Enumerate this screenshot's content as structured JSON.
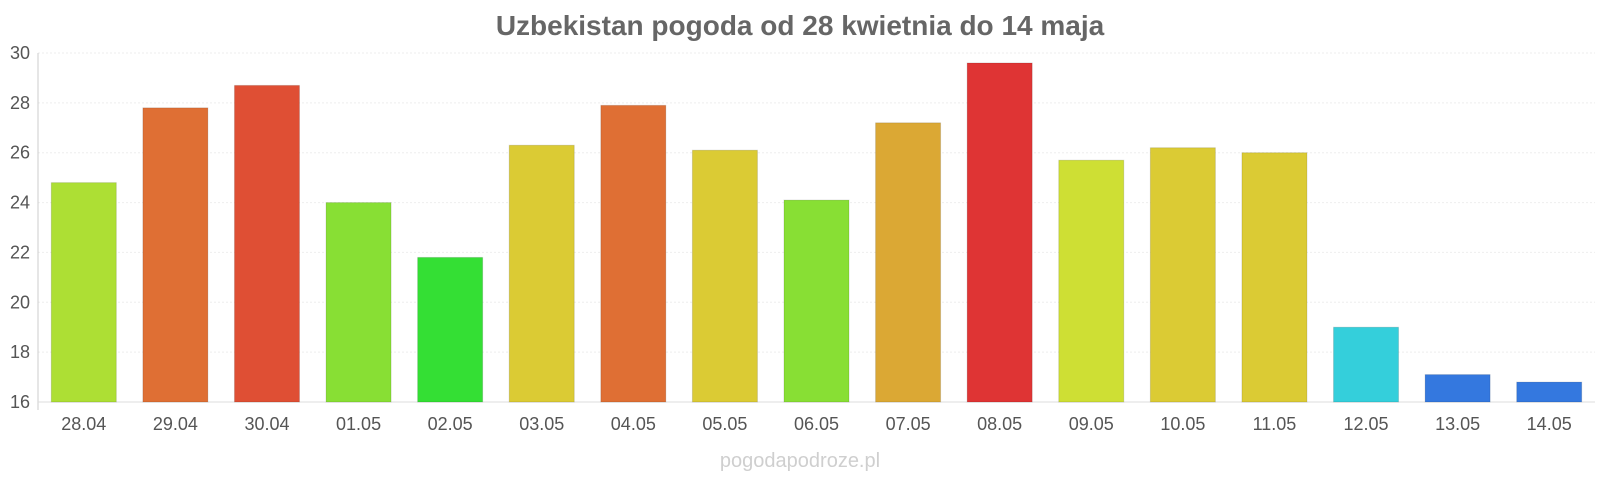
{
  "chart_data": {
    "type": "bar",
    "title": "Uzbekistan pogoda od 28 kwietnia do 14 maja",
    "xlabel": "",
    "ylabel": "",
    "ylim": [
      16,
      30
    ],
    "yticks": [
      16,
      18,
      20,
      22,
      24,
      26,
      28,
      30
    ],
    "grid": true,
    "legend": "none",
    "categories": [
      "28.04",
      "29.04",
      "30.04",
      "01.05",
      "02.05",
      "03.05",
      "04.05",
      "05.05",
      "06.05",
      "07.05",
      "08.05",
      "09.05",
      "10.05",
      "11.05",
      "12.05",
      "13.05",
      "14.05"
    ],
    "values": [
      24.8,
      27.8,
      28.7,
      24.0,
      21.8,
      26.3,
      27.9,
      26.1,
      24.1,
      27.2,
      29.6,
      25.7,
      26.2,
      26.0,
      19.0,
      17.1,
      16.8
    ],
    "colors": [
      "#addf34",
      "#df6f34",
      "#df4f34",
      "#88df34",
      "#34df34",
      "#dbcb34",
      "#df6f34",
      "#dbcb34",
      "#88df34",
      "#dba834",
      "#df3434",
      "#cedf34",
      "#dbcb34",
      "#dbcb34",
      "#34cfdb",
      "#3478df",
      "#3478df"
    ]
  },
  "watermark": "pogodapodroze.pl"
}
